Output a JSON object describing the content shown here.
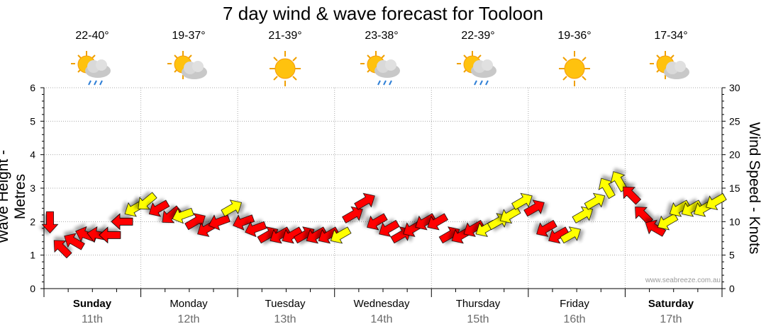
{
  "title": "7 day wind & wave forecast for Tooloon",
  "credit": "www.seabreeze.com.au",
  "days": [
    {
      "name": "Sunday",
      "date": "11th",
      "temp": "22-40°",
      "icon": "sun-cloud-rain-icon",
      "bold": true
    },
    {
      "name": "Monday",
      "date": "12th",
      "temp": "19-37°",
      "icon": "sun-cloud-icon",
      "bold": false
    },
    {
      "name": "Tuesday",
      "date": "13th",
      "temp": "21-39°",
      "icon": "sun-icon",
      "bold": false
    },
    {
      "name": "Wednesday",
      "date": "14th",
      "temp": "23-38°",
      "icon": "sun-cloud-rain-icon",
      "bold": false
    },
    {
      "name": "Thursday",
      "date": "15th",
      "temp": "22-39°",
      "icon": "sun-cloud-rain-icon",
      "bold": false
    },
    {
      "name": "Friday",
      "date": "16th",
      "temp": "19-36°",
      "icon": "sun-icon",
      "bold": false
    },
    {
      "name": "Saturday",
      "date": "17th",
      "temp": "17-34°",
      "icon": "sun-cloud-icon",
      "bold": true
    }
  ],
  "chart_data": {
    "type": "line",
    "title": "7 day wind & wave forecast for Tooloon",
    "ylabel_left": "Wave Height - Metres",
    "ylabel_right": "Wind Speed - Knots",
    "ylim_left": [
      0,
      6
    ],
    "ylim_right": [
      0,
      30
    ],
    "yticks_left": [
      0,
      1,
      2,
      3,
      4,
      5,
      6
    ],
    "yticks_right": [
      0,
      5,
      10,
      15,
      20,
      25,
      30
    ],
    "grid": true,
    "colors": {
      "strong": "#ff0000",
      "moderate": "#ffff00",
      "outline": "#000000",
      "grid": "#aaaaaa"
    },
    "series": [
      {
        "name": "Wind speed (knots) with direction arrows, hourly-ish steps",
        "x_hours": [
          0,
          3,
          6,
          9,
          12,
          15,
          18,
          21,
          24,
          27,
          30,
          33,
          36,
          39,
          42,
          45,
          48,
          51,
          54,
          57,
          60,
          63,
          66,
          69,
          72,
          75,
          78,
          81,
          84,
          87,
          90,
          93,
          96,
          99,
          102,
          105,
          108,
          111,
          114,
          117,
          120,
          123,
          126,
          129,
          132,
          135,
          138,
          141,
          144,
          147,
          150,
          153,
          156,
          159,
          162,
          165
        ],
        "values": [
          10,
          6,
          7,
          8,
          8,
          8,
          10,
          12,
          13,
          12,
          11,
          11,
          10,
          9,
          10,
          12,
          10,
          9,
          8,
          8,
          8,
          8,
          8,
          8,
          8,
          11,
          13,
          10,
          9,
          8,
          9,
          10,
          10,
          8,
          8,
          9,
          9,
          10,
          11,
          13,
          12,
          9,
          8,
          8,
          11,
          13,
          15,
          16,
          14,
          11,
          9,
          10,
          12,
          12,
          12,
          13
        ],
        "direction_deg": [
          180,
          315,
          300,
          290,
          280,
          270,
          270,
          240,
          230,
          240,
          230,
          250,
          60,
          240,
          250,
          60,
          250,
          250,
          60,
          240,
          240,
          60,
          240,
          240,
          240,
          60,
          60,
          240,
          240,
          60,
          240,
          240,
          240,
          60,
          240,
          240,
          240,
          60,
          240,
          60,
          60,
          240,
          240,
          60,
          60,
          60,
          330,
          330,
          315,
          315,
          300,
          240,
          240,
          240,
          240,
          240
        ],
        "strength": [
          "strong",
          "strong",
          "strong",
          "strong",
          "strong",
          "strong",
          "strong",
          "moderate",
          "moderate",
          "strong",
          "strong",
          "moderate",
          "strong",
          "strong",
          "strong",
          "moderate",
          "strong",
          "strong",
          "strong",
          "strong",
          "strong",
          "strong",
          "strong",
          "strong",
          "moderate",
          "strong",
          "strong",
          "strong",
          "strong",
          "strong",
          "strong",
          "strong",
          "strong",
          "strong",
          "strong",
          "strong",
          "moderate",
          "moderate",
          "moderate",
          "moderate",
          "strong",
          "strong",
          "strong",
          "moderate",
          "moderate",
          "moderate",
          "moderate",
          "moderate",
          "strong",
          "strong",
          "strong",
          "moderate",
          "moderate",
          "moderate",
          "moderate",
          "moderate"
        ]
      }
    ]
  }
}
